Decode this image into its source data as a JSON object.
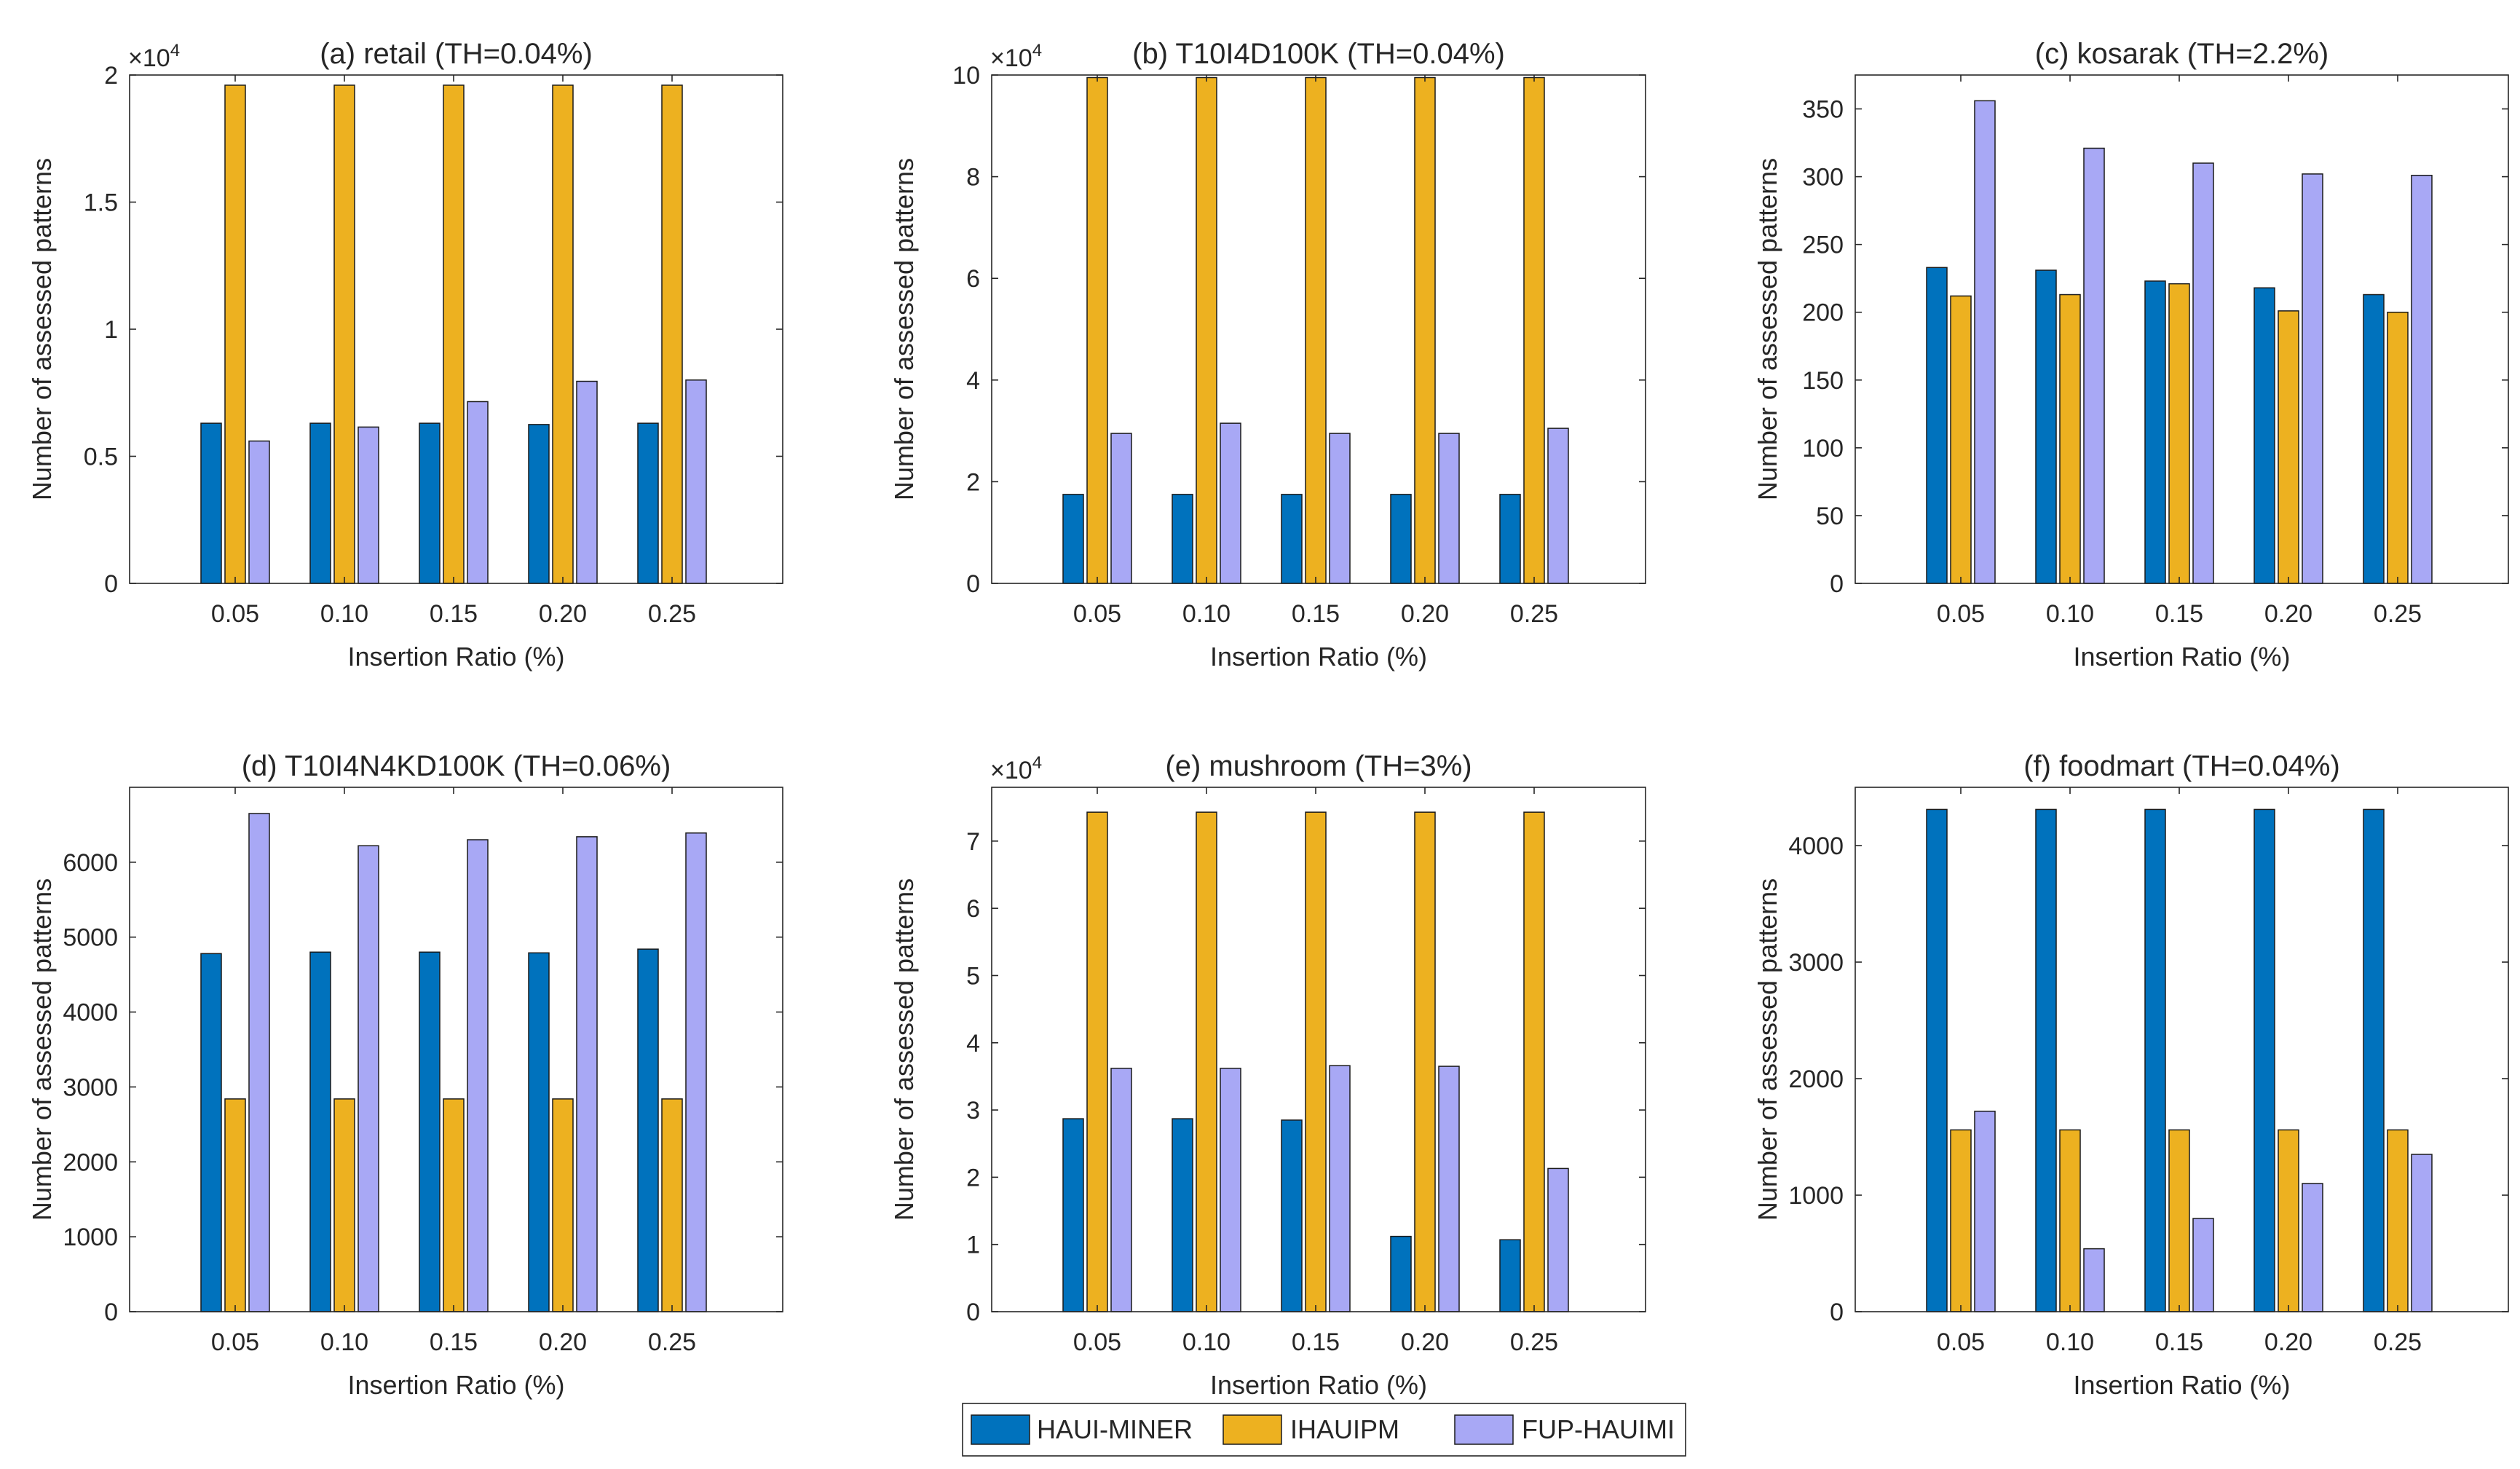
{
  "colors": {
    "HAUI-MINER": "#0072BD",
    "IHAUIPM": "#EDB120",
    "FUP-HAUIMI": "#A8A8F5",
    "axis": "#262626",
    "frame": "#d8d8d8"
  },
  "legend": {
    "placement": "bottom-center",
    "entries": [
      "HAUI-MINER",
      "IHAUIPM",
      "FUP-HAUIMI"
    ]
  },
  "chart_data": [
    {
      "type": "bar",
      "title": "(a) retail (TH=0.04%)",
      "xlabel": "Insertion Ratio (%)",
      "ylabel": "Number of assessed patterns",
      "multiplier": "×10",
      "multiplier_exp": "4",
      "categories": [
        "0.05",
        "0.10",
        "0.15",
        "0.20",
        "0.25"
      ],
      "ylim": [
        0,
        2
      ],
      "yticks": [
        0,
        0.5,
        1,
        1.5,
        2
      ],
      "ytick_labels": [
        "0",
        "0.5",
        "1",
        "1.5",
        "2"
      ],
      "series": [
        {
          "name": "HAUI-MINER",
          "values": [
            0.63,
            0.63,
            0.63,
            0.625,
            0.63
          ]
        },
        {
          "name": "IHAUIPM",
          "values": [
            1.96,
            1.96,
            1.96,
            1.96,
            1.96
          ]
        },
        {
          "name": "FUP-HAUIMI",
          "values": [
            0.56,
            0.615,
            0.715,
            0.795,
            0.8
          ]
        }
      ]
    },
    {
      "type": "bar",
      "title": "(b) T10I4D100K (TH=0.04%)",
      "xlabel": "Insertion Ratio (%)",
      "ylabel": "Number of assessed patterns",
      "multiplier": "×10",
      "multiplier_exp": "4",
      "categories": [
        "0.05",
        "0.10",
        "0.15",
        "0.20",
        "0.25"
      ],
      "ylim": [
        0,
        10
      ],
      "yticks": [
        0,
        2,
        4,
        6,
        8,
        10
      ],
      "ytick_labels": [
        "0",
        "2",
        "4",
        "6",
        "8",
        "10"
      ],
      "series": [
        {
          "name": "HAUI-MINER",
          "values": [
            1.75,
            1.75,
            1.75,
            1.75,
            1.75
          ]
        },
        {
          "name": "IHAUIPM",
          "values": [
            9.95,
            9.95,
            9.95,
            9.95,
            9.95
          ]
        },
        {
          "name": "FUP-HAUIMI",
          "values": [
            2.95,
            3.15,
            2.95,
            2.95,
            3.05
          ]
        }
      ]
    },
    {
      "type": "bar",
      "title": "(c) kosarak (TH=2.2%)",
      "xlabel": "Insertion Ratio (%)",
      "ylabel": "Number of assessed patterns",
      "multiplier": "",
      "multiplier_exp": "",
      "categories": [
        "0.05",
        "0.10",
        "0.15",
        "0.20",
        "0.25"
      ],
      "ylim": [
        0,
        375
      ],
      "yticks": [
        0,
        50,
        100,
        150,
        200,
        250,
        300,
        350
      ],
      "ytick_labels": [
        "0",
        "50",
        "100",
        "150",
        "200",
        "250",
        "300",
        "350"
      ],
      "series": [
        {
          "name": "HAUI-MINER",
          "values": [
            233,
            231,
            223,
            218,
            213
          ]
        },
        {
          "name": "IHAUIPM",
          "values": [
            212,
            213,
            221,
            201,
            200
          ]
        },
        {
          "name": "FUP-HAUIMI",
          "values": [
            356,
            321,
            310,
            302,
            301
          ]
        }
      ]
    },
    {
      "type": "bar",
      "title": "(d) T10I4N4KD100K (TH=0.06%)",
      "xlabel": "Insertion Ratio (%)",
      "ylabel": "Number of assessed patterns",
      "multiplier": "",
      "multiplier_exp": "",
      "categories": [
        "0.05",
        "0.10",
        "0.15",
        "0.20",
        "0.25"
      ],
      "ylim": [
        0,
        7000
      ],
      "yticks": [
        0,
        1000,
        2000,
        3000,
        4000,
        5000,
        6000
      ],
      "ytick_labels": [
        "0",
        "1000",
        "2000",
        "3000",
        "4000",
        "5000",
        "6000"
      ],
      "series": [
        {
          "name": "HAUI-MINER",
          "values": [
            4780,
            4800,
            4800,
            4790,
            4840
          ]
        },
        {
          "name": "IHAUIPM",
          "values": [
            2840,
            2840,
            2840,
            2840,
            2840
          ]
        },
        {
          "name": "FUP-HAUIMI",
          "values": [
            6650,
            6220,
            6300,
            6340,
            6390
          ]
        }
      ]
    },
    {
      "type": "bar",
      "title": "(e) mushroom (TH=3%)",
      "xlabel": "Insertion Ratio (%)",
      "ylabel": "Number of assessed patterns",
      "multiplier": "×10",
      "multiplier_exp": "4",
      "categories": [
        "0.05",
        "0.10",
        "0.15",
        "0.20",
        "0.25"
      ],
      "ylim": [
        0,
        7.8
      ],
      "yticks": [
        0,
        1,
        2,
        3,
        4,
        5,
        6,
        7
      ],
      "ytick_labels": [
        "0",
        "1",
        "2",
        "3",
        "4",
        "5",
        "6",
        "7"
      ],
      "series": [
        {
          "name": "HAUI-MINER",
          "values": [
            2.87,
            2.87,
            2.85,
            1.12,
            1.07
          ]
        },
        {
          "name": "IHAUIPM",
          "values": [
            7.43,
            7.43,
            7.43,
            7.43,
            7.43
          ]
        },
        {
          "name": "FUP-HAUIMI",
          "values": [
            3.62,
            3.62,
            3.66,
            3.65,
            2.13
          ]
        }
      ]
    },
    {
      "type": "bar",
      "title": "(f) foodmart (TH=0.04%)",
      "xlabel": "Insertion Ratio (%)",
      "ylabel": "Number of assessed patterns",
      "multiplier": "",
      "multiplier_exp": "",
      "categories": [
        "0.05",
        "0.10",
        "0.15",
        "0.20",
        "0.25"
      ],
      "ylim": [
        0,
        4500
      ],
      "yticks": [
        0,
        1000,
        2000,
        3000,
        4000
      ],
      "ytick_labels": [
        "0",
        "1000",
        "2000",
        "3000",
        "4000"
      ],
      "series": [
        {
          "name": "HAUI-MINER",
          "values": [
            4310,
            4310,
            4310,
            4310,
            4310
          ]
        },
        {
          "name": "IHAUIPM",
          "values": [
            1560,
            1560,
            1560,
            1560,
            1560
          ]
        },
        {
          "name": "FUP-HAUIMI",
          "values": [
            1720,
            540,
            800,
            1100,
            1350
          ]
        }
      ]
    }
  ]
}
